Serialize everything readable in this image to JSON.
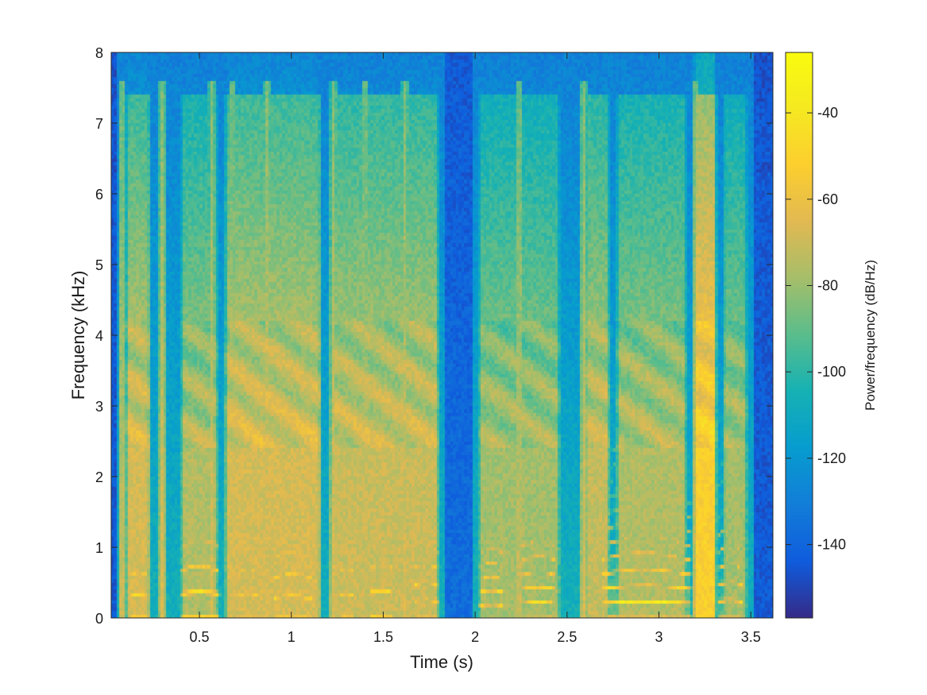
{
  "chart_data": {
    "type": "heatmap",
    "title": "",
    "xlabel": "Time (s)",
    "ylabel": "Frequency (kHz)",
    "xlim": [
      0.02,
      3.62
    ],
    "ylim": [
      0,
      8
    ],
    "xticks": [
      0.5,
      1,
      1.5,
      2,
      2.5,
      3,
      3.5
    ],
    "xtick_labels": [
      "0.5",
      "1",
      "1.5",
      "2",
      "2.5",
      "3",
      "3.5"
    ],
    "yticks": [
      0,
      1,
      2,
      3,
      4,
      5,
      6,
      7,
      8
    ],
    "ytick_labels": [
      "0",
      "1",
      "2",
      "3",
      "4",
      "5",
      "6",
      "7",
      "8"
    ],
    "colorbar": {
      "label": "Power/frequency (dB/Hz)",
      "range": [
        -157,
        -26
      ],
      "ticks": [
        -40,
        -60,
        -80,
        -100,
        -120,
        -140
      ],
      "tick_labels": [
        "-40",
        "-60",
        "-80",
        "-100",
        "-120",
        "-140"
      ],
      "colormap": "parula"
    },
    "grid": false,
    "voiced_segments": [
      {
        "t0": 0.1,
        "t1": 0.24,
        "f0": 0.28,
        "level": 0.95
      },
      {
        "t0": 0.38,
        "t1": 0.63,
        "f0": 0.32,
        "level": 0.97
      },
      {
        "t0": 0.68,
        "t1": 0.85,
        "f0": 0.3,
        "level": 0.88
      },
      {
        "t0": 0.88,
        "t1": 1.14,
        "f0": 0.27,
        "level": 0.95
      },
      {
        "t0": 1.24,
        "t1": 1.37,
        "f0": 0.3,
        "level": 0.9
      },
      {
        "t0": 1.4,
        "t1": 1.58,
        "f0": 0.33,
        "level": 0.93
      },
      {
        "t0": 1.64,
        "t1": 1.82,
        "f0": 0.22,
        "level": 0.97
      },
      {
        "t0": 2.0,
        "t1": 2.18,
        "f0": 0.17,
        "level": 0.95
      },
      {
        "t0": 2.22,
        "t1": 2.48,
        "f0": 0.19,
        "level": 0.95
      },
      {
        "t0": 2.66,
        "t1": 3.2,
        "f0": 0.2,
        "level": 0.98
      },
      {
        "t0": 3.3,
        "t1": 3.48,
        "f0": 0.22,
        "level": 0.93
      }
    ],
    "bursts": [
      0.08,
      0.3,
      0.57,
      0.68,
      0.87,
      1.23,
      1.4,
      1.62,
      2.24,
      2.59,
      3.2
    ],
    "hf_regions": [
      {
        "t0": 0.08,
        "t1": 0.25,
        "level": 0.68
      },
      {
        "t0": 0.38,
        "t1": 0.62,
        "level": 0.62
      },
      {
        "t0": 0.62,
        "t1": 1.18,
        "level": 0.68
      },
      {
        "t0": 1.2,
        "t1": 1.82,
        "level": 0.66
      },
      {
        "t0": 2.0,
        "t1": 2.48,
        "level": 0.6
      },
      {
        "t0": 2.58,
        "t1": 2.75,
        "level": 0.65
      },
      {
        "t0": 2.75,
        "t1": 3.17,
        "level": 0.62
      },
      {
        "t0": 3.17,
        "t1": 3.33,
        "level": 0.8
      },
      {
        "t0": 3.33,
        "t1": 3.5,
        "level": 0.6
      }
    ]
  }
}
